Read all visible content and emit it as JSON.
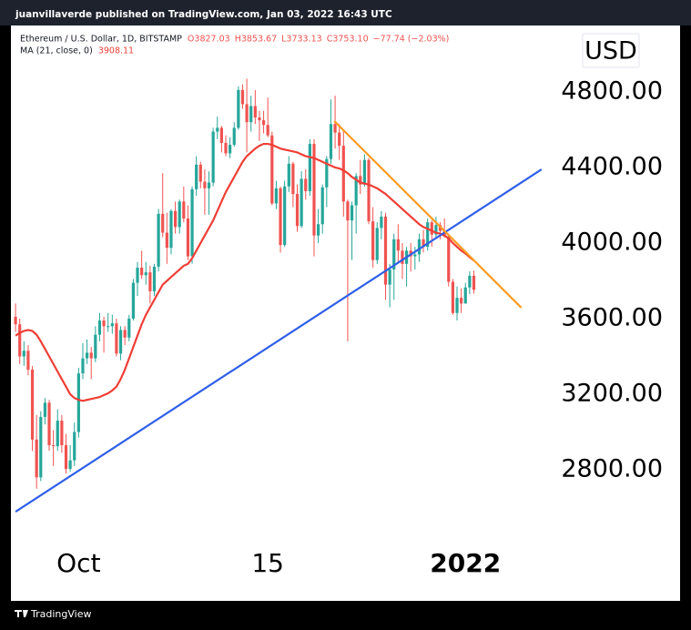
{
  "header": {
    "text": "juanvillaverde published on TradingView.com, Jan 03, 2022 16:43 UTC"
  },
  "footer": {
    "brand": "TradingView"
  },
  "chart_data": {
    "type": "candlestick",
    "currency": "USD",
    "grid": false,
    "categories": [
      null,
      null,
      null,
      null,
      null,
      null,
      null,
      null,
      null,
      null,
      null,
      null,
      null,
      null,
      null,
      null,
      null,
      null,
      null,
      null,
      null,
      null,
      null,
      null,
      null,
      null,
      null,
      null,
      null,
      null,
      null,
      null,
      null,
      null,
      null,
      null,
      null,
      null,
      null,
      null,
      null,
      null,
      null,
      null,
      null,
      null,
      null,
      null,
      null,
      null,
      null,
      null,
      null,
      null,
      null,
      null,
      null,
      null,
      null,
      null,
      null,
      null,
      null,
      null,
      null,
      null,
      null,
      null,
      null,
      null,
      null,
      null,
      null,
      null,
      null,
      null,
      null,
      null,
      null,
      null,
      null,
      null,
      null,
      null,
      null,
      null,
      null,
      null,
      null,
      null,
      null,
      null,
      null,
      null,
      null,
      null,
      null,
      null,
      null,
      null,
      null,
      null,
      null,
      null,
      null,
      null,
      null,
      null,
      null,
      null
    ],
    "xlim": [
      -1.1,
      127.3
    ],
    "xticks": [
      {
        "value": 15,
        "label": "Oct"
      },
      {
        "value": 60,
        "label": "15"
      },
      {
        "value": 107,
        "label": "2022",
        "bold": true
      }
    ],
    "ylim": [
      2405,
      5142
    ],
    "yticks": [
      {
        "value": 2800,
        "label": "2800.00"
      },
      {
        "value": 3200,
        "label": "3200.00"
      },
      {
        "value": 3600,
        "label": "3600.00"
      },
      {
        "value": 4000,
        "label": "4000.00"
      },
      {
        "value": 4400,
        "label": "4400.00"
      },
      {
        "value": 4800,
        "label": "4800.00"
      }
    ],
    "legend_values": [
      "O3827.03",
      "H3853.67",
      "L3733.13",
      "C3753.10",
      "−77.74 (−2.03%)"
    ],
    "series": [
      {
        "name": "Ethereum / U.S. Dollar, 1D, BITSTAMP",
        "type": "candlestick",
        "up_color": "#26a69a",
        "down_color": "#ef5350",
        "open": [
          3610,
          3570,
          3400,
          3430,
          3330,
          2960,
          2760,
          3080,
          3155,
          2930,
          2925,
          3060,
          2930,
          2805,
          2850,
          3000,
          3310,
          3390,
          3420,
          3390,
          3515,
          3590,
          3560,
          3560,
          3575,
          3415,
          3540,
          3500,
          3600,
          3790,
          3870,
          3830,
          3845,
          3745,
          3875,
          4155,
          4055,
          3975,
          4170,
          4085,
          4220,
          4130,
          3930,
          4285,
          4415,
          4325,
          4290,
          4320,
          4590,
          4610,
          4530,
          4475,
          4520,
          4610,
          4810,
          4735,
          4640,
          4725,
          4665,
          4650,
          4625,
          4570,
          4210,
          4290,
          3990,
          4300,
          4420,
          4260,
          4090,
          4340,
          4275,
          4525,
          4040,
          4100,
          4295,
          4445,
          4630,
          4585,
          4515,
          4220,
          4120,
          4200,
          4355,
          4310,
          4440,
          4115,
          3910,
          4080,
          4140,
          3780,
          3860,
          4020,
          3960,
          3890,
          3960,
          3930,
          3940,
          4020,
          3980,
          4110,
          4045,
          4095,
          4065,
          4035,
          3795,
          3630,
          3710,
          3680,
          3765,
          3827.03
        ],
        "high": [
          3680,
          3600,
          3480,
          3460,
          3350,
          3090,
          3110,
          3180,
          3170,
          3010,
          3120,
          3090,
          2990,
          2930,
          3050,
          3340,
          3470,
          3490,
          3450,
          3560,
          3630,
          3610,
          3630,
          3620,
          3600,
          3560,
          3560,
          3620,
          3810,
          3900,
          3960,
          3900,
          3880,
          3890,
          4180,
          4370,
          4160,
          4180,
          4220,
          4230,
          4300,
          4200,
          4300,
          4460,
          4430,
          4390,
          4380,
          4610,
          4670,
          4620,
          4570,
          4560,
          4640,
          4830,
          4840,
          4870,
          4780,
          4810,
          4700,
          4700,
          4770,
          4590,
          4330,
          4300,
          4330,
          4460,
          4430,
          4310,
          4380,
          4390,
          4550,
          4550,
          4180,
          4310,
          4460,
          4760,
          4780,
          4630,
          4600,
          4230,
          4220,
          4370,
          4440,
          4470,
          4450,
          4190,
          4110,
          4170,
          4160,
          3890,
          4050,
          4100,
          4000,
          3980,
          4000,
          3980,
          4050,
          4070,
          4130,
          4120,
          4140,
          4110,
          4130,
          4050,
          3810,
          3770,
          3760,
          3790,
          3850,
          3853.67
        ],
        "low": [
          3530,
          3360,
          3350,
          3300,
          2900,
          2700,
          2740,
          3040,
          2900,
          2820,
          2900,
          2890,
          2780,
          2790,
          2820,
          2970,
          3280,
          3360,
          3280,
          3370,
          3480,
          3420,
          3530,
          3520,
          3400,
          3380,
          3460,
          3480,
          3590,
          3720,
          3810,
          3780,
          3680,
          3720,
          3850,
          4030,
          3890,
          3940,
          4050,
          4050,
          4110,
          3910,
          3890,
          4250,
          4290,
          4150,
          4150,
          4300,
          4550,
          4480,
          4460,
          4450,
          4510,
          4600,
          4710,
          4480,
          4590,
          4630,
          4540,
          4580,
          4560,
          4200,
          4180,
          3950,
          3980,
          4270,
          4190,
          4060,
          4080,
          4230,
          4250,
          3930,
          4000,
          4050,
          4190,
          4420,
          4500,
          4440,
          4140,
          3480,
          3910,
          4050,
          4260,
          4300,
          4100,
          3870,
          3890,
          4020,
          3700,
          3660,
          3700,
          3900,
          3810,
          3770,
          3850,
          3860,
          3900,
          3950,
          3960,
          3980,
          4030,
          4020,
          4030,
          3770,
          3620,
          3590,
          3630,
          3680,
          3730,
          3733.13
        ],
        "close": [
          3570,
          3400,
          3430,
          3330,
          2960,
          2760,
          3080,
          3155,
          2930,
          2925,
          3060,
          2930,
          2805,
          2850,
          3000,
          3310,
          3390,
          3420,
          3390,
          3515,
          3590,
          3560,
          3560,
          3575,
          3415,
          3540,
          3500,
          3600,
          3790,
          3870,
          3830,
          3845,
          3745,
          3875,
          4155,
          4055,
          3975,
          4170,
          4085,
          4220,
          4130,
          3930,
          4285,
          4415,
          4325,
          4290,
          4320,
          4590,
          4610,
          4530,
          4475,
          4520,
          4610,
          4810,
          4735,
          4640,
          4725,
          4665,
          4650,
          4625,
          4570,
          4210,
          4290,
          3990,
          4300,
          4420,
          4260,
          4090,
          4340,
          4275,
          4525,
          4040,
          4100,
          4295,
          4445,
          4630,
          4585,
          4515,
          4220,
          4120,
          4200,
          4355,
          4310,
          4440,
          4115,
          3910,
          4080,
          4140,
          3780,
          3860,
          4020,
          3960,
          3890,
          3960,
          3930,
          3940,
          4020,
          3980,
          4110,
          4045,
          4095,
          4065,
          4035,
          3795,
          3630,
          3710,
          3680,
          3765,
          3827.03,
          3753.1
        ]
      },
      {
        "name": "MA (21, close, 0)",
        "type": "line",
        "color": "#ef3e36",
        "values": [
          3510,
          3525,
          3535,
          3540,
          3535,
          3515,
          3480,
          3440,
          3400,
          3360,
          3320,
          3280,
          3240,
          3200,
          3180,
          3170,
          3165,
          3170,
          3175,
          3180,
          3185,
          3195,
          3205,
          3220,
          3240,
          3280,
          3330,
          3390,
          3450,
          3510,
          3570,
          3620,
          3660,
          3700,
          3740,
          3780,
          3800,
          3820,
          3840,
          3860,
          3880,
          3890,
          3920,
          3960,
          4000,
          4040,
          4080,
          4120,
          4170,
          4220,
          4270,
          4310,
          4350,
          4390,
          4430,
          4460,
          4480,
          4500,
          4515,
          4525,
          4525,
          4520,
          4510,
          4500,
          4495,
          4490,
          4485,
          4480,
          4470,
          4460,
          4455,
          4450,
          4440,
          4430,
          4420,
          4410,
          4400,
          4395,
          4385,
          4370,
          4350,
          4335,
          4320,
          4315,
          4310,
          4300,
          4290,
          4275,
          4260,
          4240,
          4220,
          4200,
          4180,
          4160,
          4140,
          4120,
          4100,
          4085,
          4075,
          4065,
          4055,
          4050,
          4040,
          4025,
          4000,
          3980,
          3960,
          3945,
          3925,
          3908.11
        ]
      }
    ],
    "drawings": [
      {
        "color": "#2f5fe8",
        "x": [
          0,
          125.1
        ],
        "y": [
          2578,
          4390
        ]
      },
      {
        "color": "#ff9a1f",
        "x": [
          75.8,
          120.3
        ],
        "y": [
          4646,
          3658
        ]
      }
    ]
  }
}
